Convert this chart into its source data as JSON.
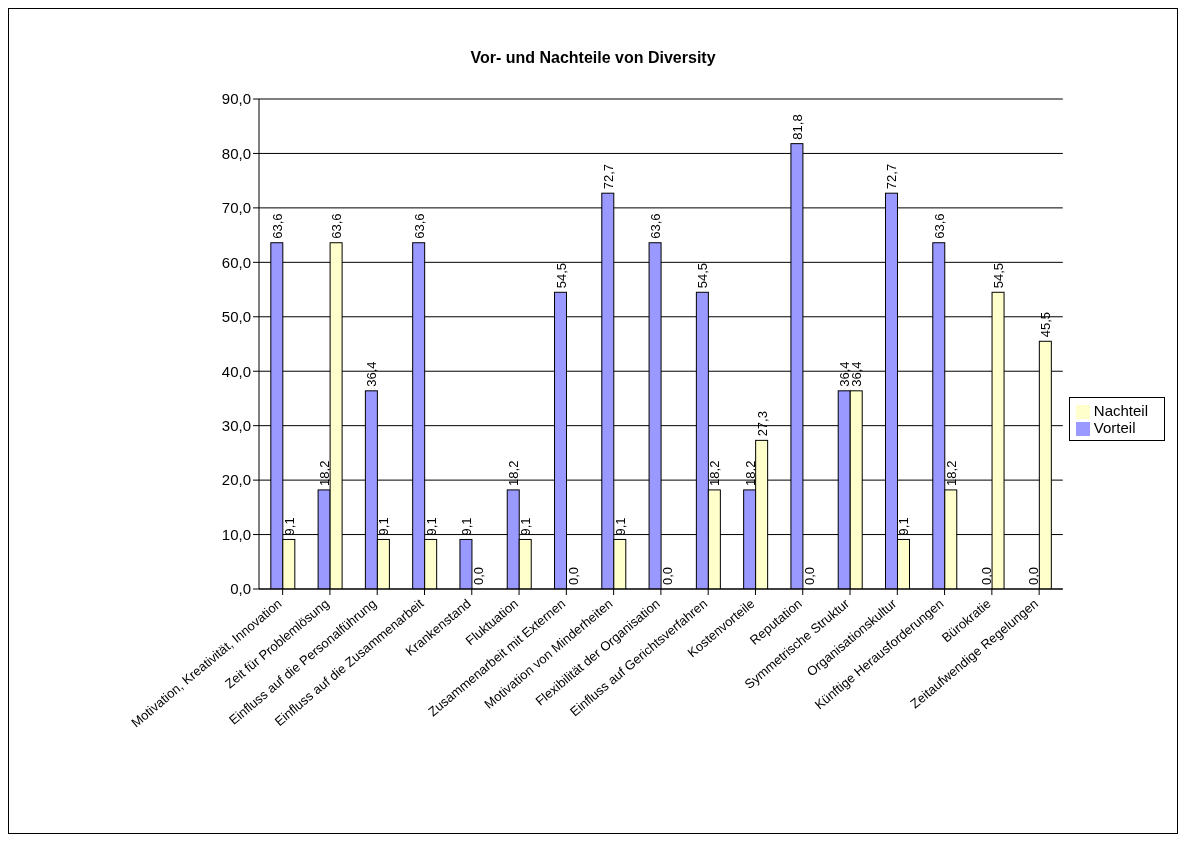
{
  "chart_data": {
    "type": "bar",
    "title": "Vor- und Nachteile von Diversity",
    "categories": [
      "Motivation, Kreativität, Innovation",
      "Zeit für Problemlösung",
      "Einfluss auf die Personalführung",
      "Einfluss auf die Zusammenarbeit",
      "Krankenstand",
      "Fluktuation",
      "Zusammenarbeit mit Externen",
      "Motivation von Minderheiten",
      "Flexibilität der Organisation",
      "Einfluss auf Gerichtsverfahren",
      "Kostenvorteile",
      "Reputation",
      "Symmetrische Struktur",
      "Organisationskultur",
      "Künftige Herausforderungen",
      "Bürokratie",
      "Zeitaufwendige Regelungen"
    ],
    "series": [
      {
        "name": "Vorteil",
        "color": "#9999ff",
        "values": [
          63.6,
          18.2,
          36.4,
          63.6,
          9.1,
          18.2,
          54.5,
          72.7,
          63.6,
          54.5,
          18.2,
          81.8,
          36.4,
          72.7,
          63.6,
          0.0,
          0.0
        ],
        "value_labels": [
          "63,6",
          "18,2",
          "36,4",
          "63,6",
          "9,1",
          "18,2",
          "54,5",
          "72,7",
          "63,6",
          "54,5",
          "18,2",
          "81,8",
          "36,4",
          "72,7",
          "63,6",
          "0,0",
          "0,0"
        ]
      },
      {
        "name": "Nachteil",
        "color": "#ffffcc",
        "values": [
          9.1,
          63.6,
          9.1,
          9.1,
          0.0,
          9.1,
          0.0,
          9.1,
          0.0,
          18.2,
          27.3,
          0.0,
          36.4,
          9.1,
          18.2,
          54.5,
          45.5
        ],
        "value_labels": [
          "9,1",
          "63,6",
          "9,1",
          "9,1",
          "0,0",
          "9,1",
          "0,0",
          "9,1",
          "0,0",
          "18,2",
          "27,3",
          "0,0",
          "36,4",
          "9,1",
          "18,2",
          "54,5",
          "45,5"
        ]
      }
    ],
    "ylim": [
      0,
      90
    ],
    "yticks": [
      {
        "value": 0,
        "label": "0,0"
      },
      {
        "value": 10,
        "label": "10,0"
      },
      {
        "value": 20,
        "label": "20,0"
      },
      {
        "value": 30,
        "label": "30,0"
      },
      {
        "value": 40,
        "label": "40,0"
      },
      {
        "value": 50,
        "label": "50,0"
      },
      {
        "value": 60,
        "label": "60,0"
      },
      {
        "value": 70,
        "label": "70,0"
      },
      {
        "value": 80,
        "label": "80,0"
      },
      {
        "value": 90,
        "label": "90,0"
      }
    ],
    "grid": "y",
    "legend": "right"
  }
}
